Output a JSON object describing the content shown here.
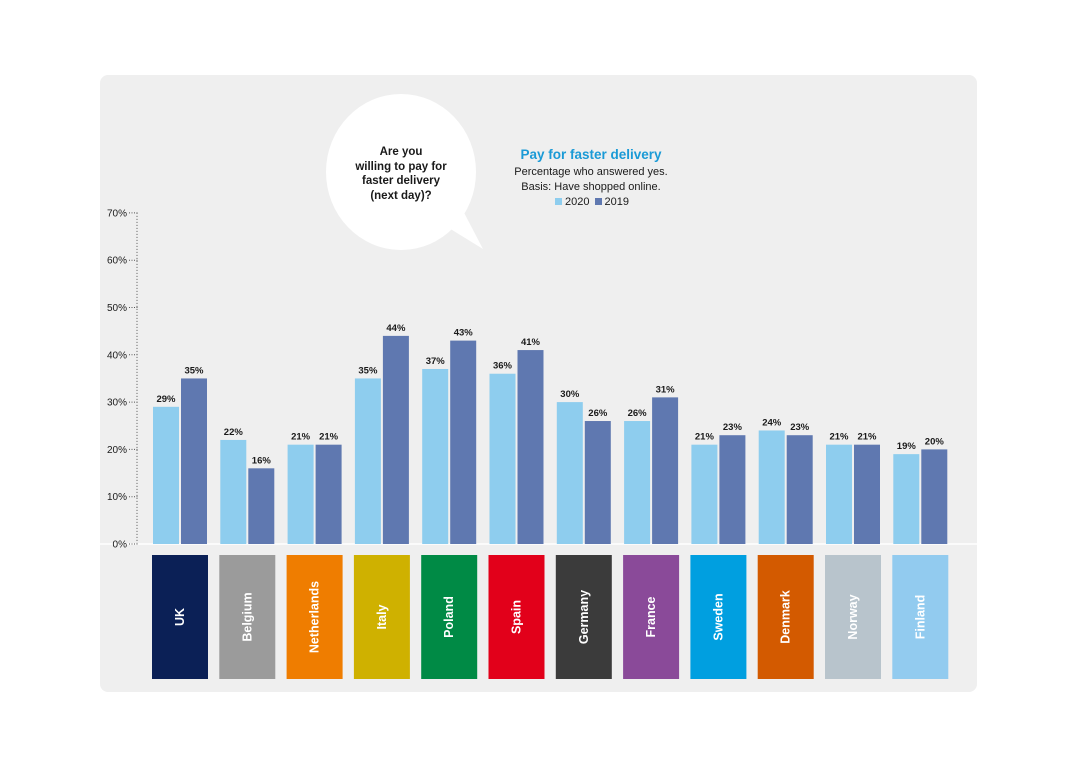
{
  "bubble": {
    "lines": [
      "Are you",
      "willing to pay for",
      "faster delivery",
      "(next day)?"
    ]
  },
  "chart_data": {
    "type": "bar",
    "title": "Pay for faster delivery",
    "subtitle_lines": [
      "Percentage who answered yes.",
      "Basis: Have shopped online."
    ],
    "xlabel": "",
    "ylabel": "",
    "ylim": [
      0,
      70
    ],
    "yticks": [
      "0%",
      "10%",
      "20%",
      "30%",
      "40%",
      "50%",
      "60%",
      "70%"
    ],
    "categories": [
      "UK",
      "Belgium",
      "Netherlands",
      "Italy",
      "Poland",
      "Spain",
      "Germany",
      "France",
      "Sweden",
      "Denmark",
      "Norway",
      "Finland"
    ],
    "category_colors": [
      "#0b2056",
      "#9b9b9b",
      "#ef7d00",
      "#cfb100",
      "#008a45",
      "#e2001a",
      "#3b3b3b",
      "#8a4a99",
      "#009fe0",
      "#d35a00",
      "#b8c4cc",
      "#92cbef"
    ],
    "series": [
      {
        "name": "2020",
        "color": "#8ecdee",
        "values": [
          29,
          22,
          21,
          35,
          37,
          36,
          30,
          26,
          21,
          24,
          21,
          19
        ],
        "labels": [
          "29%",
          "22%",
          "21%",
          "35%",
          "37%",
          "36%",
          "30%",
          "26%",
          "21%",
          "24%",
          "21%",
          "19%"
        ]
      },
      {
        "name": "2019",
        "color": "#5f78b0",
        "values": [
          35,
          16,
          21,
          44,
          43,
          41,
          26,
          31,
          23,
          23,
          21,
          20
        ],
        "labels": [
          "35%",
          "16%",
          "21%",
          "44%",
          "43%",
          "41%",
          "26%",
          "31%",
          "23%",
          "23%",
          "21%",
          "20%"
        ]
      }
    ],
    "grid": false,
    "legend_position": "top"
  }
}
